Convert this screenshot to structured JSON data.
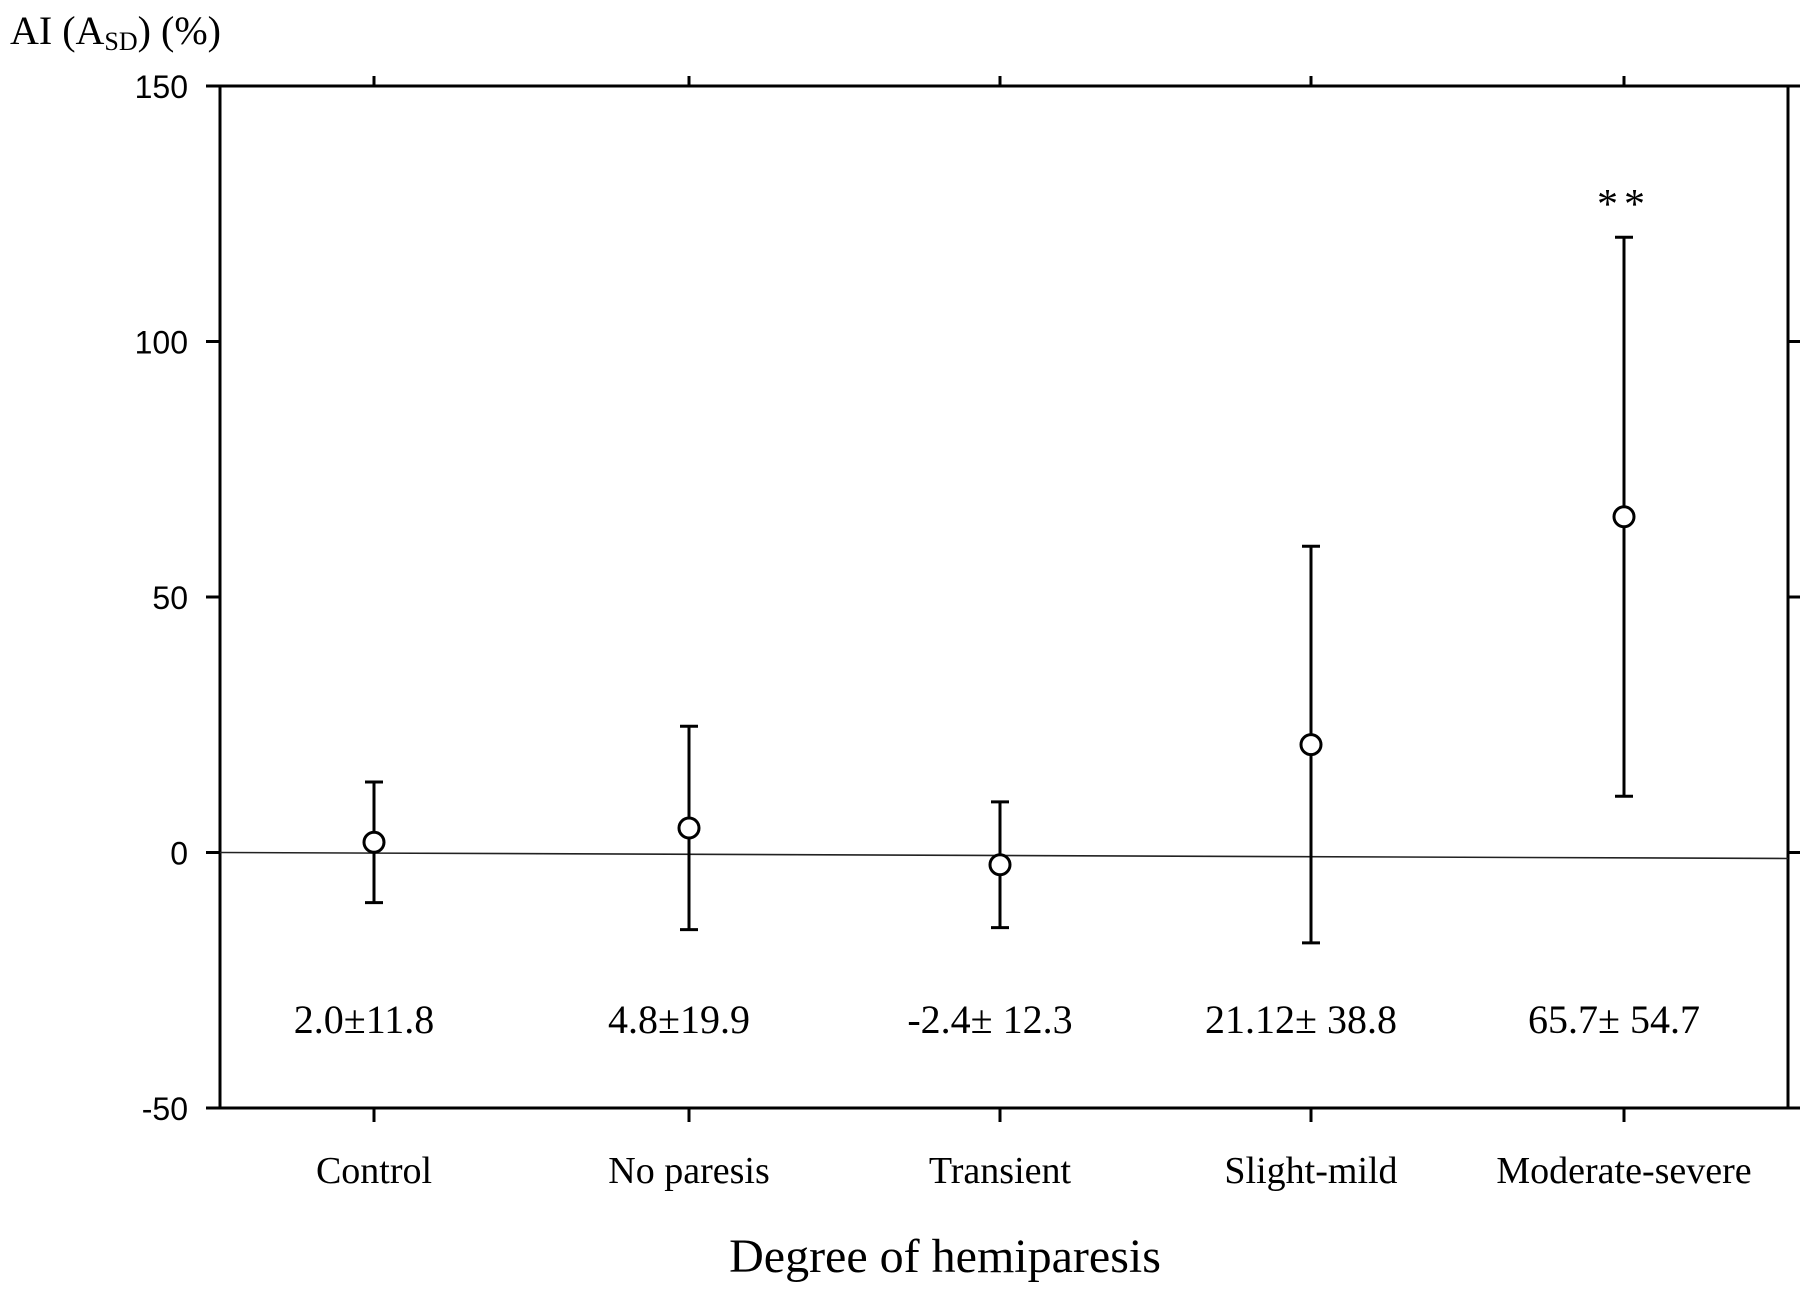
{
  "chart_data": {
    "type": "scatter",
    "ylabel_main": "AI (A",
    "ylabel_sub": "SD",
    "ylabel_tail": ") (%)",
    "xlabel": "Degree of hemiparesis",
    "ylim": [
      -50,
      150
    ],
    "yticks": [
      "-50",
      "0",
      "50",
      "100",
      "150"
    ],
    "ytick_values": [
      -50,
      0,
      50,
      100,
      150
    ],
    "categories": [
      "Control",
      "No paresis",
      "Transient",
      "Slight-mild",
      "Moderate-severe"
    ],
    "means": [
      2.0,
      4.8,
      -2.4,
      21.12,
      65.7
    ],
    "sds": [
      11.8,
      19.9,
      12.3,
      38.8,
      54.7
    ],
    "value_labels": [
      "2.0±11.8",
      "4.8±19.9",
      "-2.4± 12.3",
      "21.12± 38.8",
      "65.7± 54.7"
    ],
    "annotations": [
      "",
      "",
      "",
      "",
      "**"
    ],
    "reference_line": 0,
    "grid": false
  }
}
